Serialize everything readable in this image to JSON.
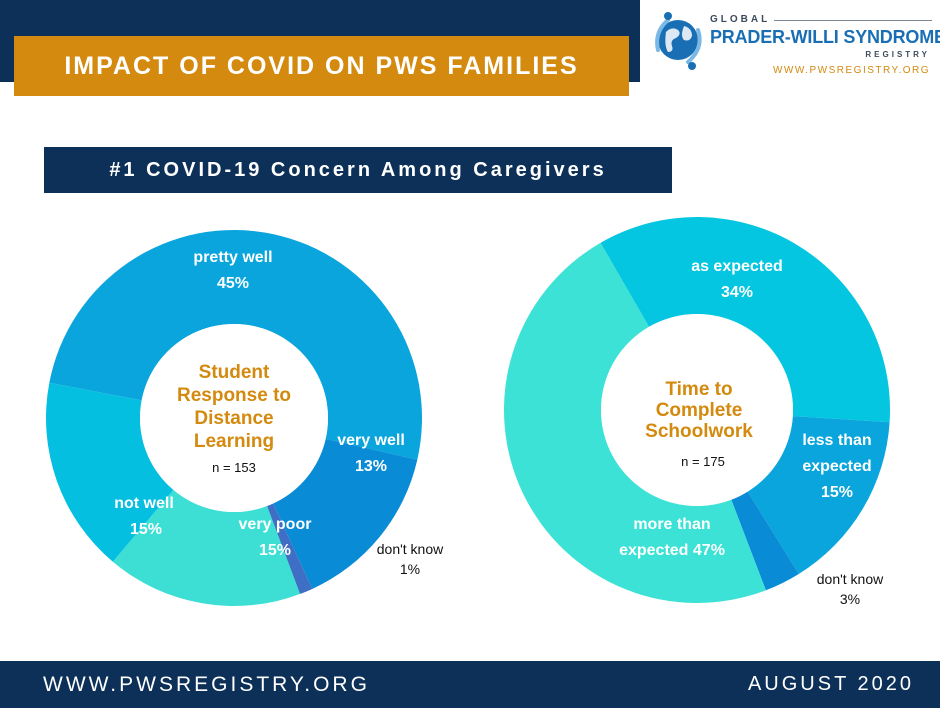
{
  "header": {
    "title": "IMPACT OF COVID ON PWS FAMILIES"
  },
  "logo": {
    "line1": "GLOBAL",
    "line2": "PRADER-WILLI SYNDROME",
    "line3": "REGISTRY",
    "url": "WWW.PWSREGISTRY.ORG"
  },
  "subtitle": "#1 COVID-19 Concern Among Caregivers",
  "footer": {
    "url": "WWW.PWSREGISTRY.ORG",
    "date": "AUGUST  2020"
  },
  "colors": {
    "navy": "#0d3058",
    "gold": "#d38a0e"
  },
  "chart_data": [
    {
      "type": "pie",
      "donut": true,
      "center_title": [
        "Student",
        "Response to",
        "Distance",
        "Learning"
      ],
      "center_n": "n = 153",
      "slices": [
        {
          "label": "pretty well",
          "pct": "45%",
          "value": 45,
          "color": "#09a5dc"
        },
        {
          "label": "very well",
          "pct": "13%",
          "value": 13,
          "color": "#0a8bd6"
        },
        {
          "label": "don't know",
          "pct": "1%",
          "value": 1,
          "color": "#3e6fc4"
        },
        {
          "label": "very poor",
          "pct": "15%",
          "value": 15,
          "color": "#3ddfd5"
        },
        {
          "label": "not well",
          "pct": "15%",
          "value": 15,
          "color": "#04bfdf"
        }
      ]
    },
    {
      "type": "pie",
      "donut": true,
      "center_title": [
        "Time to",
        "Complete",
        "Schoolwork"
      ],
      "center_n": "n = 175",
      "slices": [
        {
          "label": "as expected",
          "pct": "34%",
          "value": 34,
          "color": "#04c6e0"
        },
        {
          "label": "less than expected",
          "label_lines": [
            "less than",
            "expected"
          ],
          "pct": "15%",
          "value": 15,
          "color": "#09a5dc"
        },
        {
          "label": "don't know",
          "pct": "3%",
          "value": 3,
          "color": "#0a8bd6"
        },
        {
          "label": "more than expected",
          "label_lines": [
            "more than",
            "expected 47%"
          ],
          "pct": "47%",
          "value": 47,
          "color": "#3de2d6"
        }
      ]
    }
  ]
}
